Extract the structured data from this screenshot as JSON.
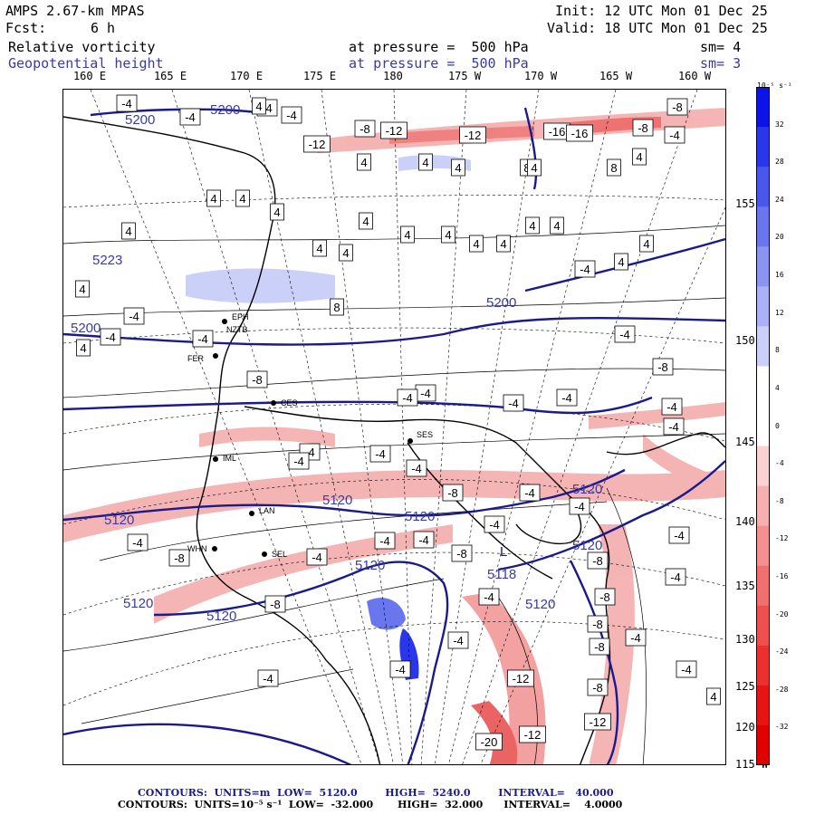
{
  "header": {
    "model": "AMPS 2.67-km MPAS",
    "fcst_label": "Fcst:",
    "fcst_value": "6 h",
    "init": "Init: 12 UTC Mon 01 Dec 25",
    "valid": "Valid: 18 UTC Mon 01 Dec 25",
    "field1_name": "Relative vorticity",
    "field1_pressure": "at pressure =  500 hPa",
    "field1_sm": "sm= 4",
    "field2_name": "Geopotential height",
    "field2_pressure": "at pressure =  500 hPa",
    "field2_sm": "sm= 3"
  },
  "longitude_labels": [
    "160 E",
    "165 E",
    "170 E",
    "175 E",
    "180",
    "175 W",
    "170 W",
    "165 W",
    "160 W"
  ],
  "latitude_labels": [
    "155 W",
    "150 W",
    "145 W",
    "140 W",
    "135 W",
    "130 W",
    "125 W",
    "120 W",
    "115 W"
  ],
  "colorbar": {
    "unit_label": "10⁻⁵ s⁻¹",
    "ticks": [
      "32",
      "28",
      "24",
      "20",
      "16",
      "12",
      "8",
      "4",
      "0",
      "-4",
      "-8",
      "-12",
      "-16",
      "-20",
      "-24",
      "-28",
      "-32"
    ],
    "colors": [
      "#0a14e6",
      "#2a37e8",
      "#4a57eb",
      "#6a76ee",
      "#8a94f1",
      "#aab1f5",
      "#cbd0f9",
      "#ffffff",
      "#ffffff",
      "#fad2d2",
      "#f7b0b0",
      "#f49090",
      "#f07070",
      "#ee5050",
      "#ea3030",
      "#e81414",
      "#e00000"
    ]
  },
  "map": {
    "height_contour_color": "#1a1a8c",
    "positive_vorticity_color": "#aab1f5",
    "negative_vorticity_color": "#f49090",
    "height_labels": [
      "5200",
      "5200",
      "5223",
      "5200",
      "5200",
      "5120",
      "5120",
      "5120",
      "5120",
      "5120",
      "5120",
      "5120",
      "5120",
      "5118",
      "5120"
    ],
    "low_label": "L",
    "station_labels": [
      "EPH",
      "NZTB",
      "FER",
      "CES",
      "SES",
      "IML",
      "LAN",
      "WHN",
      "SEL"
    ],
    "vorticity_labels": [
      "-4",
      "-4",
      "-4",
      "4",
      "-4",
      "-8",
      "-12",
      "-12",
      "-12",
      "-16",
      "-16",
      "-8",
      "-8",
      "-4",
      "4",
      "4",
      "4",
      "8",
      "8",
      "4",
      "4",
      "4",
      "4",
      "4",
      "4",
      "4",
      "4",
      "4",
      "4",
      "4",
      "4",
      "4",
      "4",
      "4",
      "4",
      "8",
      "4",
      "4",
      "-4",
      "4",
      "-4",
      "-4",
      "-8",
      "-4",
      "-4",
      "-4",
      "-4",
      "-4",
      "-4",
      "-8",
      "-4",
      "-4",
      "-4",
      "-4",
      "-4",
      "-8",
      "-4",
      "-4",
      "-4",
      "-4",
      "-8",
      "-4",
      "-4",
      "-4",
      "-8",
      "-8",
      "-8",
      "-8",
      "-4",
      "-8",
      "-12",
      "-12",
      "-12",
      "-20",
      "-4",
      "-4",
      "-4",
      "-8",
      "-4",
      "-8",
      "-4",
      "-4",
      "-4",
      "-4",
      "4"
    ]
  },
  "footer": {
    "line1": "CONTOURS:  UNITS=m  LOW=  5120.0        HIGH=  5240.0        INTERVAL=   40.000",
    "line2": "CONTOURS:  UNITS=10⁻⁵ s⁻¹  LOW=  -32.000       HIGH=  32.000      INTERVAL=    4.0000"
  }
}
